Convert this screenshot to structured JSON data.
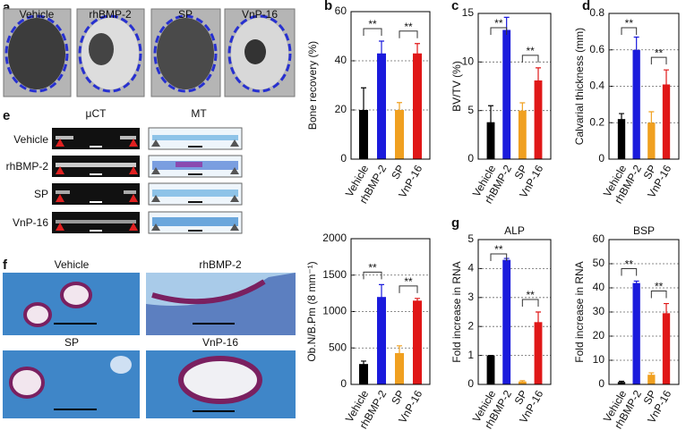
{
  "panel_a": {
    "label": "a",
    "conditions": [
      "Vehicle",
      "rhBMP-2",
      "SP",
      "VnP-16"
    ]
  },
  "panel_e": {
    "label": "e",
    "columns": [
      "μCT",
      "MT"
    ],
    "rows": [
      "Vehicle",
      "rhBMP-2",
      "SP",
      "VnP-16"
    ]
  },
  "panel_f": {
    "label": "f",
    "images": [
      "Vehicle",
      "rhBMP-2",
      "SP",
      "VnP-16"
    ]
  },
  "chart_data": [
    {
      "type": "bar",
      "panel": "b",
      "ylabel": "Bone recovery (%)",
      "categories": [
        "Vehicle",
        "rhBMP-2",
        "SP",
        "VnP-16"
      ],
      "colors": [
        "#000000",
        "#1a1adc",
        "#f0a020",
        "#e01818"
      ],
      "values": [
        20,
        43,
        20,
        43
      ],
      "errors": [
        9,
        5,
        3,
        4
      ],
      "ylim": [
        0,
        60
      ],
      "yticks": [
        0,
        20,
        40,
        60
      ],
      "grid": true,
      "annotations": [
        "**",
        "**"
      ]
    },
    {
      "type": "bar",
      "panel": "c",
      "ylabel": "BV/TV (%)",
      "categories": [
        "Vehicle",
        "rhBMP-2",
        "SP",
        "VnP-16"
      ],
      "colors": [
        "#000000",
        "#1a1adc",
        "#f0a020",
        "#e01818"
      ],
      "values": [
        3.8,
        13.3,
        5,
        8.1
      ],
      "errors": [
        1.7,
        1.3,
        0.8,
        1.3
      ],
      "ylim": [
        0,
        15
      ],
      "yticks": [
        0,
        5,
        10,
        15
      ],
      "grid": true,
      "annotations": [
        "**",
        "**"
      ]
    },
    {
      "type": "bar",
      "panel": "d",
      "ylabel": "Calvarial thickness (mm)",
      "categories": [
        "Vehicle",
        "rhBMP-2",
        "SP",
        "VnP-16"
      ],
      "colors": [
        "#000000",
        "#1a1adc",
        "#f0a020",
        "#e01818"
      ],
      "values": [
        0.22,
        0.6,
        0.2,
        0.41
      ],
      "errors": [
        0.03,
        0.07,
        0.06,
        0.08
      ],
      "ylim": [
        0,
        0.8
      ],
      "yticks": [
        0,
        0.2,
        0.4,
        0.6,
        0.8
      ],
      "grid": true,
      "annotations": [
        "**",
        "**"
      ]
    },
    {
      "type": "bar",
      "ylabel": "Ob.N/B.Pm (8 mm⁻¹)",
      "categories": [
        "Vehicle",
        "rhBMP-2",
        "SP",
        "VnP-16"
      ],
      "colors": [
        "#000000",
        "#1a1adc",
        "#f0a020",
        "#e01818"
      ],
      "values": [
        280,
        1200,
        430,
        1150
      ],
      "errors": [
        40,
        170,
        100,
        30
      ],
      "ylim": [
        0,
        2000
      ],
      "yticks": [
        0,
        500,
        1000,
        1500,
        2000
      ],
      "grid": true,
      "annotations": [
        "**",
        "**"
      ]
    },
    {
      "type": "bar",
      "panel": "g",
      "title": "ALP",
      "ylabel": "Fold increase in RNA",
      "categories": [
        "Vehicle",
        "rhBMP-2",
        "SP",
        "VnP-16"
      ],
      "colors": [
        "#000000",
        "#1a1adc",
        "#f0a020",
        "#e01818"
      ],
      "values": [
        1,
        4.3,
        0.1,
        2.15
      ],
      "errors": [
        0,
        0.05,
        0.03,
        0.35
      ],
      "ylim": [
        0,
        5
      ],
      "yticks": [
        0,
        1,
        2,
        3,
        4,
        5
      ],
      "grid": true,
      "annotations": [
        "**",
        "**"
      ]
    },
    {
      "type": "bar",
      "title": "BSP",
      "ylabel": "Fold increase in RNA",
      "categories": [
        "Vehicle",
        "rhBMP-2",
        "SP",
        "VnP-16"
      ],
      "colors": [
        "#000000",
        "#1a1adc",
        "#f0a020",
        "#e01818"
      ],
      "values": [
        1,
        42,
        4,
        29.5
      ],
      "errors": [
        0.3,
        0.8,
        0.8,
        4
      ],
      "ylim": [
        0,
        60
      ],
      "yticks": [
        0,
        10,
        20,
        30,
        40,
        50,
        60
      ],
      "grid": true,
      "annotations": [
        "**",
        "**"
      ]
    }
  ]
}
